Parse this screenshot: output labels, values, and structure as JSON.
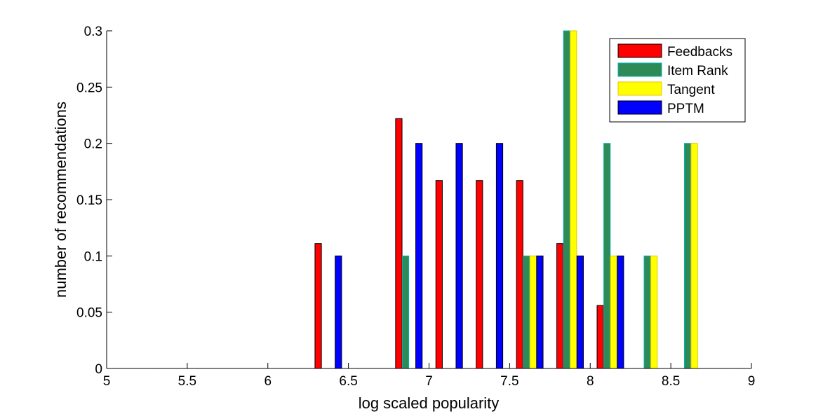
{
  "chart_data": {
    "type": "bar",
    "title": "",
    "xlabel": "log scaled popularity",
    "ylabel": "number of recommendations",
    "xlim": [
      5,
      9
    ],
    "ylim": [
      0,
      0.3
    ],
    "xticks": [
      5,
      5.5,
      6,
      6.5,
      7,
      7.5,
      8,
      8.5,
      9
    ],
    "xtick_labels": [
      "5",
      "5.5",
      "6",
      "6.5",
      "7",
      "7.5",
      "8",
      "8.5",
      "9"
    ],
    "yticks": [
      0,
      0.05,
      0.1,
      0.15,
      0.2,
      0.25,
      0.3
    ],
    "ytick_labels": [
      "0",
      "0.05",
      "0.1",
      "0.15",
      "0.2",
      "0.25",
      "0.3"
    ],
    "grid": false,
    "legend_position": "top-right",
    "bar_width": 0.04,
    "bins": [
      5.125,
      5.375,
      5.625,
      5.875,
      6.125,
      6.375,
      6.625,
      6.875,
      7.125,
      7.375,
      7.625,
      7.875,
      8.125,
      8.375,
      8.625,
      8.875
    ],
    "series": [
      {
        "name": "Feedbacks",
        "color": "#ff0000",
        "edge": "#000000",
        "offset": -0.0625,
        "values": [
          0,
          0,
          0,
          0,
          0,
          0.111,
          0,
          0.222,
          0.167,
          0.167,
          0.167,
          0.111,
          0.056,
          0,
          0,
          0
        ]
      },
      {
        "name": "Item Rank",
        "color": "#2e8b57",
        "edge": "#00b3b3",
        "offset": -0.0208,
        "values": [
          0,
          0,
          0,
          0,
          0,
          0,
          0,
          0.1,
          0,
          0,
          0.1,
          0.3,
          0.2,
          0.1,
          0.2,
          0
        ]
      },
      {
        "name": "Tangent",
        "color": "#ffff00",
        "edge": "#e6c800",
        "offset": 0.0208,
        "values": [
          0,
          0,
          0,
          0,
          0,
          0,
          0,
          0,
          0,
          0,
          0.1,
          0.3,
          0.1,
          0.1,
          0.2,
          0
        ]
      },
      {
        "name": "PPTM",
        "color": "#0000ff",
        "edge": "#000000",
        "offset": 0.0625,
        "values": [
          0,
          0,
          0,
          0,
          0,
          0.1,
          0,
          0.2,
          0.2,
          0.2,
          0.1,
          0.1,
          0.1,
          0,
          0,
          0
        ]
      }
    ]
  }
}
